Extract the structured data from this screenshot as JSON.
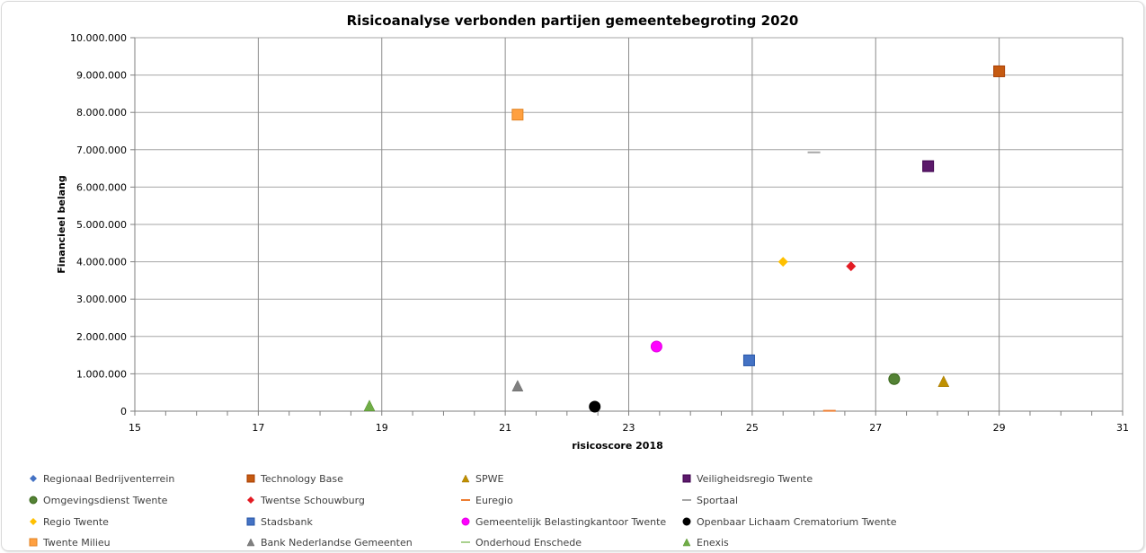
{
  "chart_data": {
    "type": "scatter",
    "title": "Risicoanalyse verbonden partijen gemeentebegroting 2020",
    "xlabel": "risicoscore 2018",
    "ylabel": "Financieel belang",
    "xlim": [
      15,
      31
    ],
    "ylim": [
      0,
      10000000
    ],
    "x_ticks": [
      15,
      17,
      19,
      21,
      23,
      25,
      27,
      29,
      31
    ],
    "x_tick_labels": [
      "15",
      "17",
      "19",
      "21",
      "23",
      "25",
      "27",
      "29",
      "31"
    ],
    "x_minor_step": 0.5,
    "y_ticks": [
      0,
      1000000,
      2000000,
      3000000,
      4000000,
      5000000,
      6000000,
      7000000,
      8000000,
      9000000,
      10000000
    ],
    "y_tick_labels": [
      "0",
      "1.000.000",
      "2.000.000",
      "3.000.000",
      "4.000.000",
      "5.000.000",
      "6.000.000",
      "7.000.000",
      "8.000.000",
      "9.000.000",
      "10.000.000"
    ],
    "grid": true,
    "legend_position": "bottom",
    "series": [
      {
        "name": "Regionaal Bedrijventerrein",
        "marker": "diamond",
        "color": "#4472c4",
        "points": []
      },
      {
        "name": "Technology Base",
        "marker": "square",
        "color": "#c55a11",
        "points": [
          [
            29.0,
            9100000
          ]
        ]
      },
      {
        "name": "SPWE",
        "marker": "triangle",
        "color": "#bf9000",
        "points": [
          [
            28.1,
            800000
          ]
        ]
      },
      {
        "name": "Veiligheidsregio Twente",
        "marker": "square",
        "color": "#5c1a6b",
        "points": [
          [
            27.85,
            6560000
          ]
        ]
      },
      {
        "name": "Omgevingsdienst Twente",
        "marker": "circle",
        "color": "#548235",
        "points": [
          [
            27.3,
            860000
          ]
        ]
      },
      {
        "name": "Twentse Schouwburg",
        "marker": "diamond",
        "color": "#e31b23",
        "points": [
          [
            26.6,
            3880000
          ]
        ]
      },
      {
        "name": "Euregio",
        "marker": "dash",
        "color": "#ed7d31",
        "points": [
          [
            26.25,
            10000
          ]
        ]
      },
      {
        "name": "Sportaal",
        "marker": "dash",
        "color": "#a6a6a6",
        "points": [
          [
            26.0,
            6930000
          ]
        ]
      },
      {
        "name": "Regio Twente",
        "marker": "diamond",
        "color": "#ffc000",
        "points": [
          [
            25.5,
            4000000
          ]
        ]
      },
      {
        "name": "Stadsbank",
        "marker": "square",
        "color": "#4472c4",
        "points": [
          [
            24.95,
            1360000
          ]
        ]
      },
      {
        "name": "Gemeentelijk Belastingkantoor Twente",
        "marker": "circle",
        "color": "#ff00ff",
        "points": [
          [
            23.45,
            1730000
          ]
        ]
      },
      {
        "name": "Openbaar Lichaam Crematorium Twente",
        "marker": "circle",
        "color": "#000000",
        "points": [
          [
            22.45,
            120000
          ]
        ]
      },
      {
        "name": "Twente Milieu",
        "marker": "square",
        "color": "#ffa040",
        "points": [
          [
            21.2,
            7940000
          ]
        ]
      },
      {
        "name": "Bank Nederlandse Gemeenten",
        "marker": "triangle",
        "color": "#808080",
        "points": [
          [
            21.2,
            680000
          ]
        ]
      },
      {
        "name": "Onderhoud Enschede",
        "marker": "dash",
        "color": "#a9d18e",
        "points": []
      },
      {
        "name": "Enexis",
        "marker": "triangle",
        "color": "#70ad47",
        "points": [
          [
            18.8,
            150000
          ]
        ]
      }
    ]
  }
}
